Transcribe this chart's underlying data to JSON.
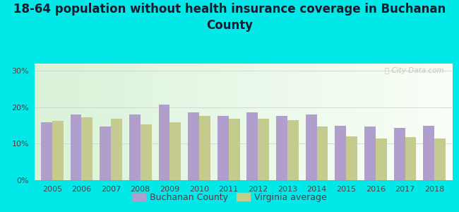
{
  "title_line1": "18-64 population without health insurance coverage in Buchanan",
  "title_line2": "County",
  "years": [
    2005,
    2006,
    2007,
    2008,
    2009,
    2010,
    2011,
    2012,
    2013,
    2014,
    2015,
    2016,
    2017,
    2018
  ],
  "buchanan": [
    16.0,
    18.0,
    14.7,
    18.0,
    20.8,
    18.7,
    17.7,
    18.7,
    17.7,
    18.0,
    15.0,
    14.7,
    14.3,
    15.0
  ],
  "virginia": [
    16.3,
    17.2,
    16.8,
    15.3,
    16.0,
    17.7,
    16.8,
    16.8,
    16.5,
    14.7,
    12.0,
    11.5,
    11.8,
    11.5
  ],
  "buchanan_color": "#b09fcc",
  "virginia_color": "#c5cb8e",
  "background_outer": "#00e8e8",
  "ylim": [
    0,
    32
  ],
  "yticks": [
    0,
    10,
    20,
    30
  ],
  "ytick_labels": [
    "0%",
    "10%",
    "20%",
    "30%"
  ],
  "legend_buchanan": "Buchanan County",
  "legend_virginia": "Virginia average",
  "bar_width": 0.38,
  "title_fontsize": 12,
  "tick_fontsize": 8,
  "legend_fontsize": 9,
  "title_color": "#1a1a2e",
  "tick_color": "#444444"
}
